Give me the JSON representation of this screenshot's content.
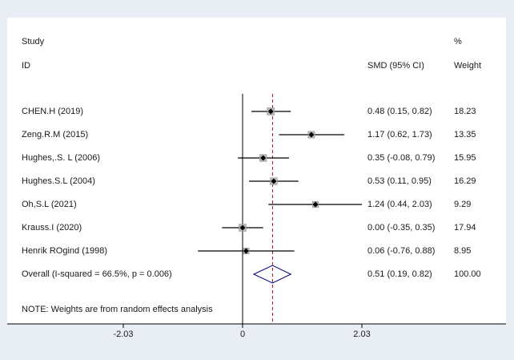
{
  "headers": {
    "study": "Study",
    "id": "ID",
    "percent": "%",
    "effect": "SMD (95% CI)",
    "weight": "Weight"
  },
  "footnote": "NOTE: Weights are from random effects analysis",
  "colors": {
    "panel_bg": "#ffffff",
    "page_bg": "#e9eef4",
    "ci_line": "#000000",
    "overall_line": "#a01818",
    "diamond": "#000080"
  },
  "chart_data": {
    "type": "forest",
    "measure": "SMD",
    "x_ticks": [
      -2.03,
      0,
      2.03
    ],
    "x_tick_labels": [
      "-2.03",
      "0",
      "2.03"
    ],
    "null_line": 0,
    "studies": [
      {
        "label": "CHEN.H (2019)",
        "est": 0.48,
        "lo": 0.15,
        "hi": 0.82,
        "ci_text": "0.48 (0.15, 0.82)",
        "weight": 18.23,
        "weight_text": "18.23"
      },
      {
        "label": "Zeng.R.M (2015)",
        "est": 1.17,
        "lo": 0.62,
        "hi": 1.73,
        "ci_text": "1.17 (0.62, 1.73)",
        "weight": 13.35,
        "weight_text": "13.35"
      },
      {
        "label": "Hughes,.S. L (2006)",
        "est": 0.35,
        "lo": -0.08,
        "hi": 0.79,
        "ci_text": "0.35 (-0.08, 0.79)",
        "weight": 15.95,
        "weight_text": "15.95"
      },
      {
        "label": "Hughes.S.L (2004)",
        "est": 0.53,
        "lo": 0.11,
        "hi": 0.95,
        "ci_text": "0.53 (0.11, 0.95)",
        "weight": 16.29,
        "weight_text": "16.29"
      },
      {
        "label": "Oh,S.L (2021)",
        "est": 1.24,
        "lo": 0.44,
        "hi": 2.03,
        "ci_text": "1.24 (0.44, 2.03)",
        "weight": 9.29,
        "weight_text": "9.29"
      },
      {
        "label": "Krauss.I (2020)",
        "est": 0.0,
        "lo": -0.35,
        "hi": 0.35,
        "ci_text": "0.00 (-0.35, 0.35)",
        "weight": 17.94,
        "weight_text": "17.94"
      },
      {
        "label": "Henrik ROgind (1998)",
        "est": 0.06,
        "lo": -0.76,
        "hi": 0.88,
        "ci_text": "0.06 (-0.76, 0.88)",
        "weight": 8.95,
        "weight_text": "8.95"
      }
    ],
    "overall": {
      "label": "Overall  (I-squared = 66.5%, p = 0.006)",
      "est": 0.51,
      "lo": 0.19,
      "hi": 0.82,
      "ci_text": "0.51 (0.19, 0.82)",
      "weight_text": "100.00"
    }
  }
}
